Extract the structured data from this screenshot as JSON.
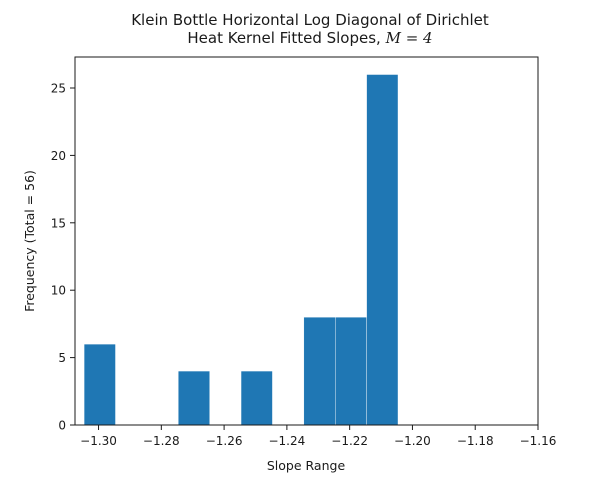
{
  "chart_data": {
    "type": "bar",
    "title_line1": "Klein Bottle Horizontal Log Diagonal of Dirichlet",
    "title_line2_prefix": "Heat Kernel Fitted Slopes, ",
    "title_line2_math": "M = 4",
    "xlabel": "Slope Range",
    "ylabel": "Frequency (Total = 56)",
    "xlim": [
      -1.3075,
      -1.16
    ],
    "ylim": [
      0,
      27.3
    ],
    "x_ticks": [
      -1.3,
      -1.28,
      -1.26,
      -1.24,
      -1.22,
      -1.2,
      -1.18,
      -1.16
    ],
    "x_tick_labels": [
      "−1.30",
      "−1.28",
      "−1.26",
      "−1.24",
      "−1.22",
      "−1.20",
      "−1.18",
      "−1.16"
    ],
    "y_ticks": [
      0,
      5,
      10,
      15,
      20,
      25
    ],
    "y_tick_labels": [
      "0",
      "5",
      "10",
      "15",
      "20",
      "25"
    ],
    "bins": [
      {
        "x0": -1.3046,
        "x1": -1.2946,
        "count": 6
      },
      {
        "x0": -1.2946,
        "x1": -1.2846,
        "count": 0
      },
      {
        "x0": -1.2846,
        "x1": -1.2746,
        "count": 0
      },
      {
        "x0": -1.2746,
        "x1": -1.2646,
        "count": 4
      },
      {
        "x0": -1.2646,
        "x1": -1.2546,
        "count": 0
      },
      {
        "x0": -1.2546,
        "x1": -1.2446,
        "count": 4
      },
      {
        "x0": -1.2446,
        "x1": -1.2346,
        "count": 0
      },
      {
        "x0": -1.2346,
        "x1": -1.2246,
        "count": 8
      },
      {
        "x0": -1.2246,
        "x1": -1.2146,
        "count": 8
      },
      {
        "x0": -1.2146,
        "x1": -1.2046,
        "count": 26
      }
    ],
    "bar_color": "#1f77b4",
    "grid": false,
    "legend": "none"
  }
}
